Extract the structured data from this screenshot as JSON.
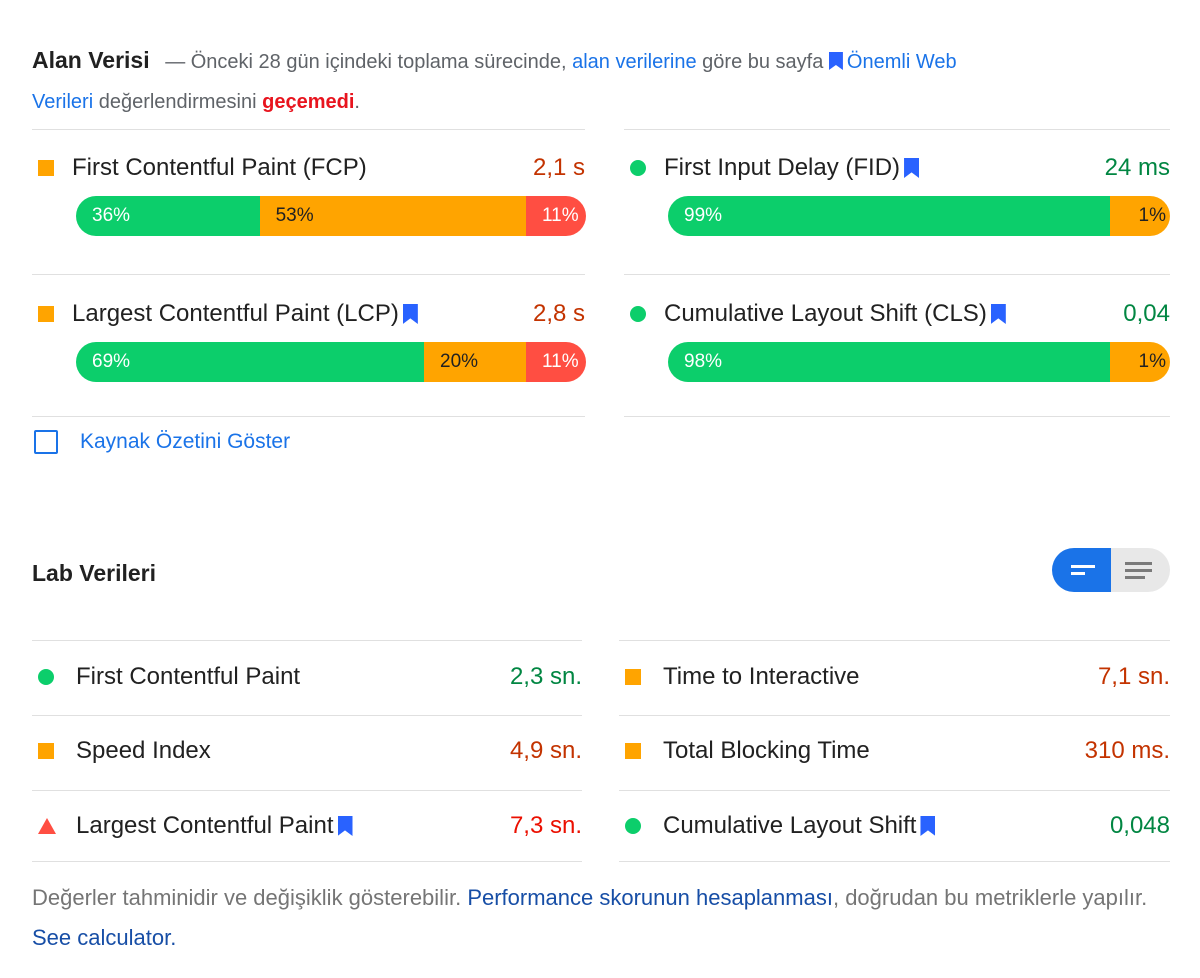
{
  "field": {
    "title": "Alan Verisi",
    "intro": "— Önceki 28 gün içindeki toplama sürecinde,",
    "link1": "alan verilerine",
    "mid": "göre bu sayfa",
    "link2_part1": "Önemli Web",
    "link2_part2": "Verileri",
    "assess": "değerlendirmesini",
    "result": "geçemedi",
    "end": ".",
    "metrics": [
      {
        "name": "First Contentful Paint (FCP)",
        "value": "2,1 s",
        "status": "average",
        "bookmark": false,
        "dist": [
          {
            "label": "36%",
            "pct": 36,
            "kind": "good"
          },
          {
            "label": "53%",
            "pct": 53,
            "kind": "average"
          },
          {
            "label": "11%",
            "pct": 11,
            "kind": "poor"
          }
        ]
      },
      {
        "name": "First Input Delay (FID)",
        "value": "24 ms",
        "status": "good",
        "bookmark": true,
        "dist": [
          {
            "label": "99%",
            "pct": 99,
            "kind": "good"
          },
          {
            "label": "1%",
            "pct": 1,
            "kind": "average"
          }
        ]
      },
      {
        "name": "Largest Contentful Paint (LCP)",
        "value": "2,8 s",
        "status": "average",
        "bookmark": true,
        "dist": [
          {
            "label": "69%",
            "pct": 69,
            "kind": "good"
          },
          {
            "label": "20%",
            "pct": 20,
            "kind": "average"
          },
          {
            "label": "11%",
            "pct": 11,
            "kind": "poor"
          }
        ]
      },
      {
        "name": "Cumulative Layout Shift (CLS)",
        "value": "0,04",
        "status": "good",
        "bookmark": true,
        "dist": [
          {
            "label": "98%",
            "pct": 98,
            "kind": "good"
          },
          {
            "label": "1%",
            "pct": 1,
            "kind": "average"
          }
        ]
      }
    ],
    "origin_summary": "Kaynak Özetini Göster"
  },
  "lab": {
    "title": "Lab Verileri",
    "view_toggle": [
      "bar-view-icon",
      "list-view-icon"
    ],
    "metrics": [
      {
        "name": "First Contentful Paint",
        "value": "2,3 sn.",
        "status": "good",
        "bookmark": false
      },
      {
        "name": "Time to Interactive",
        "value": "7,1 sn.",
        "status": "average",
        "bookmark": false
      },
      {
        "name": "Speed Index",
        "value": "4,9 sn.",
        "status": "average",
        "bookmark": false
      },
      {
        "name": "Total Blocking Time",
        "value": "310 ms.",
        "status": "average",
        "bookmark": false
      },
      {
        "name": "Largest Contentful Paint",
        "value": "7,3 sn.",
        "status": "poor",
        "bookmark": true
      },
      {
        "name": "Cumulative Layout Shift",
        "value": "0,048",
        "status": "good",
        "bookmark": true
      }
    ]
  },
  "footer": {
    "text1": "Değerler tahminidir ve değişiklik gösterebilir.",
    "link1": "Performance skorunun hesaplanması",
    "text2": ", doğrudan bu metriklerle yapılır.",
    "link2": "See calculator."
  },
  "colors": {
    "good": "#0cce6b",
    "average": "#ffa400",
    "poor": "#ff4e42",
    "link": "#1a73e8"
  }
}
